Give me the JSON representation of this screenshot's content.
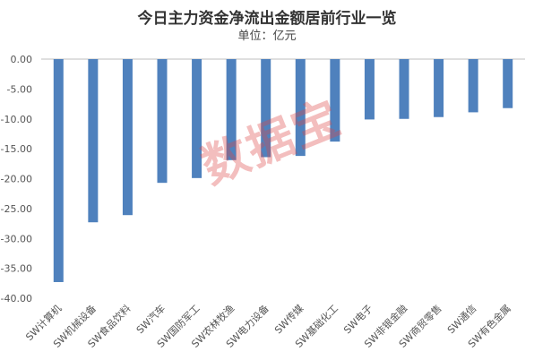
{
  "chart_data": {
    "type": "bar",
    "title": "今日主力资金净流出金额居前行业一览",
    "subtitle": "单位：亿元",
    "xlabel": "",
    "ylabel": "",
    "ylim": [
      -40,
      0
    ],
    "yticks": [
      "0.00",
      "-5.00",
      "-10.00",
      "-15.00",
      "-20.00",
      "-25.00",
      "-30.00",
      "-35.00",
      "-40.00"
    ],
    "grid": false,
    "legend": "none",
    "categories": [
      "SW计算机",
      "SW机械设备",
      "SW食品饮料",
      "SW汽车",
      "SW国防军工",
      "SW农林牧渔",
      "SW电力设备",
      "SW传媒",
      "SW基础化工",
      "SW电子",
      "SW非银金融",
      "SW商贸零售",
      "SW通信",
      "SW有色金属"
    ],
    "values": [
      -37.3,
      -27.3,
      -26.1,
      -20.7,
      -19.9,
      -16.9,
      -16.4,
      -16.2,
      -13.8,
      -10.1,
      -10.0,
      -9.7,
      -8.9,
      -8.2
    ],
    "bar_color": "#4f81bd"
  },
  "watermark": "数据宝"
}
